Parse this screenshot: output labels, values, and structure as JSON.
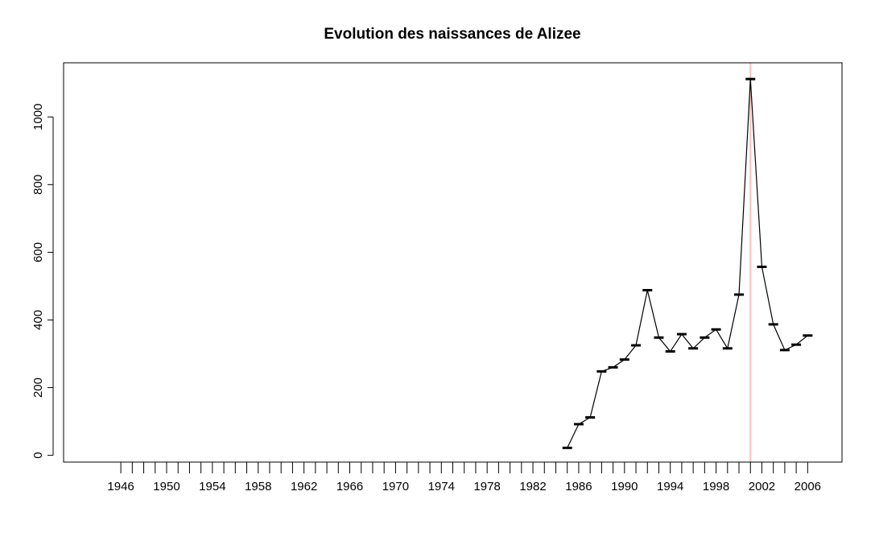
{
  "chart_data": {
    "type": "line",
    "title": "Evolution des naissances de Alizee",
    "xlabel": "",
    "ylabel": "",
    "x_tick_labels": [
      "1946",
      "1950",
      "1954",
      "1958",
      "1962",
      "1966",
      "1970",
      "1974",
      "1978",
      "1982",
      "1986",
      "1990",
      "1994",
      "1998",
      "2002",
      "2006"
    ],
    "y_tick_labels": [
      "0",
      "200",
      "400",
      "600",
      "800",
      "1000"
    ],
    "xlim": [
      1941,
      2009
    ],
    "ylim": [
      -20,
      1160
    ],
    "x": [
      1985,
      1986,
      1987,
      1988,
      1989,
      1990,
      1991,
      1992,
      1993,
      1994,
      1995,
      1996,
      1997,
      1998,
      1999,
      2000,
      2001,
      2002,
      2003,
      2004,
      2005,
      2006
    ],
    "values": [
      22,
      92,
      112,
      248,
      260,
      283,
      325,
      488,
      348,
      307,
      358,
      316,
      348,
      372,
      316,
      475,
      1112,
      557,
      387,
      311,
      327,
      354
    ],
    "vline_x": 2001,
    "grid": false,
    "colors": {
      "line": "#000000",
      "vline": "#f4c2c2",
      "axis": "#000000"
    }
  }
}
